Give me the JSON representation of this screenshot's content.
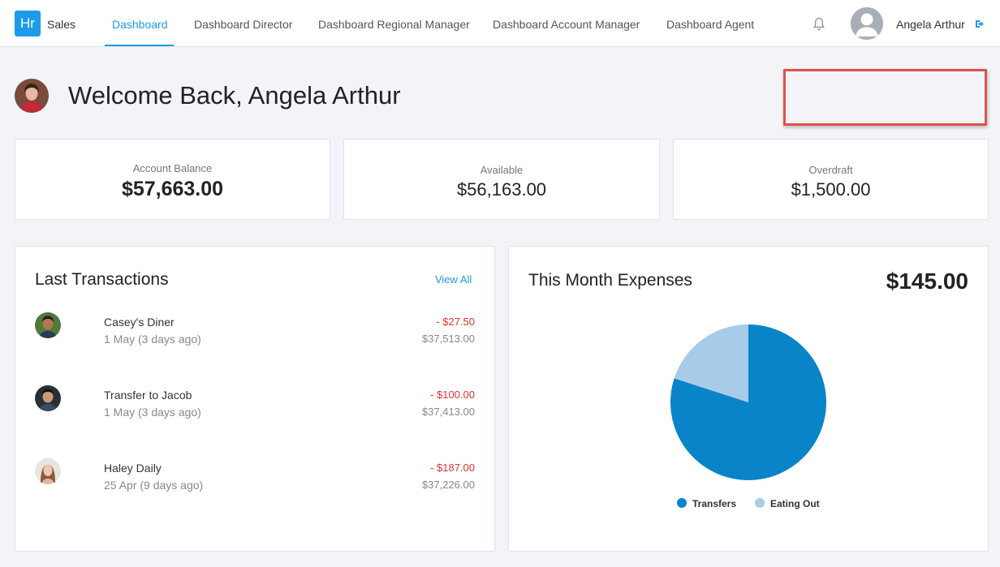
{
  "nav": {
    "logo": "Hr",
    "app_name": "Sales",
    "tabs": [
      "Dashboard",
      "Dashboard Director",
      "Dashboard Regional Manager",
      "Dashboard Account Manager",
      "Dashboard Agent"
    ],
    "user_name": "Angela Arthur"
  },
  "welcome": {
    "title": "Welcome Back, Angela Arthur"
  },
  "stats": {
    "balance_label": "Account Balance",
    "balance_value": "$57,663.00",
    "available_label": "Available",
    "available_value": "$56,163.00",
    "overdraft_label": "Overdraft",
    "overdraft_value": "$1,500.00"
  },
  "transactions": {
    "title": "Last Transactions",
    "view_all": "View All",
    "items": [
      {
        "name": "Casey's Diner",
        "date": "1 May (3 days ago)",
        "amount": "- $27.50",
        "balance": "$37,513.00"
      },
      {
        "name": "Transfer to Jacob",
        "date": "1 May (3 days ago)",
        "amount": "- $100.00",
        "balance": "$37,413.00"
      },
      {
        "name": "Haley Daily",
        "date": "25 Apr (9 days ago)",
        "amount": "- $187.00",
        "balance": "$37,226.00"
      }
    ]
  },
  "expenses": {
    "title": "This Month Expenses",
    "total": "$145.00"
  },
  "chart_data": {
    "type": "pie",
    "categories": [
      "Transfers",
      "Eating Out"
    ],
    "values": [
      80,
      20
    ],
    "colors": [
      "#0a84c9",
      "#a8cbe8"
    ],
    "legend": "bottom"
  }
}
